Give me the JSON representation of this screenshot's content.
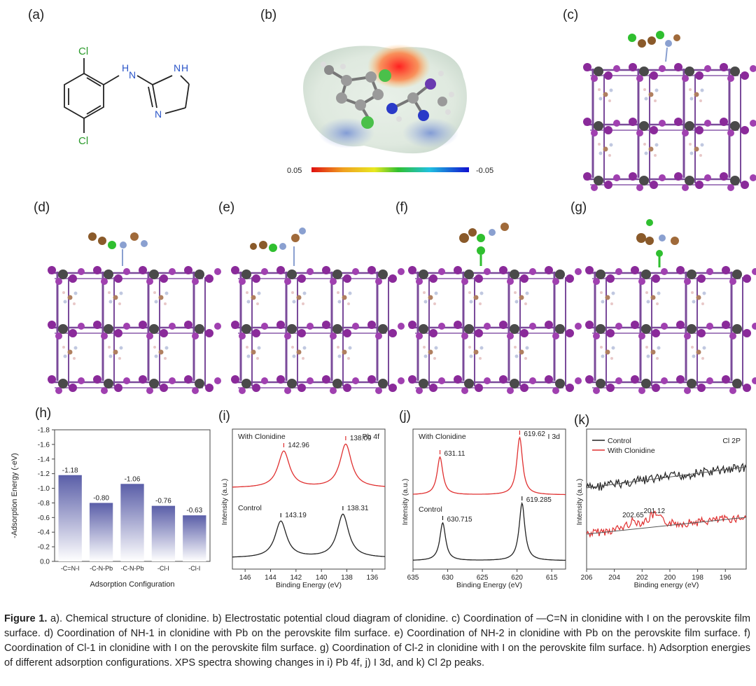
{
  "panel_labels": [
    "(a)",
    "(b)",
    "(c)",
    "(d)",
    "(e)",
    "(f)",
    "(g)",
    "(h)",
    "(i)",
    "(j)",
    "(k)"
  ],
  "structure": {
    "atoms": {
      "cl_top": "Cl",
      "cl_bottom": "Cl",
      "nh_link": "H",
      "nh_link_n": "N",
      "nh_ring_h": "H",
      "nh_ring_n": "N",
      "n_ring": "N"
    }
  },
  "esp": {
    "scale_max": "0.05",
    "scale_min": "-0.05"
  },
  "chart_h": {
    "type": "bar",
    "ylabel": "-Adsorption Energy (-eV)",
    "xlabel": "Adsorption Configuration",
    "ylim": [
      0.0,
      -1.8
    ],
    "yticks": [
      "-1.8",
      "-1.6",
      "-1.4",
      "-1.2",
      "-1.0",
      "-0.8",
      "-0.6",
      "-0.4",
      "-0.2",
      "0.0"
    ],
    "categories": [
      "-C=N-I",
      "-C-N-Pb",
      "-C-N-Pb",
      "-Cl-I",
      "-Cl-I"
    ],
    "values": [
      -1.18,
      -0.8,
      -1.06,
      -0.76,
      -0.63
    ],
    "value_labels": [
      "-1.18",
      "-0.80",
      "-1.06",
      "-0.76",
      "-0.63"
    ],
    "bar_color": "#5a5ea8"
  },
  "chart_i": {
    "type": "line",
    "corner_left": "With Clonidine",
    "corner_right": "Pb 4f",
    "ylabel": "Intensity (a.u.)",
    "xlabel": "Binding Energy (eV)",
    "xticks": [
      "146",
      "144",
      "142",
      "140",
      "138",
      "136"
    ],
    "xlim": [
      147,
      135
    ],
    "series": [
      {
        "name": "With Clonidine",
        "color": "#e03030",
        "peaks": [
          142.96,
          138.09
        ],
        "labels": [
          "142.96",
          "138.09"
        ]
      },
      {
        "name": "Control",
        "color": "#222222",
        "peaks": [
          143.19,
          138.31
        ],
        "labels": [
          "143.19",
          "138.31"
        ]
      }
    ]
  },
  "chart_j": {
    "type": "line",
    "corner_left": "With Clonidine",
    "corner_right": "I 3d",
    "ylabel": "Intensity (a.u.)",
    "xlabel": "Binding Energy (eV)",
    "xticks": [
      "635",
      "630",
      "625",
      "620",
      "615"
    ],
    "xlim": [
      635,
      613
    ],
    "series": [
      {
        "name": "With Clonidine",
        "color": "#e03030",
        "peaks": [
          631.11,
          619.62
        ],
        "labels": [
          "631.11",
          "619.62"
        ]
      },
      {
        "name": "Control",
        "color": "#222222",
        "peaks": [
          630.715,
          619.285
        ],
        "labels": [
          "630.715",
          "619.285"
        ]
      }
    ]
  },
  "chart_k": {
    "type": "line",
    "corner_right": "Cl 2P",
    "legend": [
      "Control",
      "With Clonidine"
    ],
    "ylabel": "Intensity (a.u.)",
    "xlabel": "Binding energy (eV)",
    "xticks": [
      "206",
      "204",
      "202",
      "200",
      "198",
      "196"
    ],
    "xlim": [
      206,
      194.5
    ],
    "peak_labels": [
      "202.65",
      "201.12"
    ],
    "colors": {
      "control": "#222222",
      "clonidine": "#e03030"
    }
  },
  "caption": {
    "label": "Figure 1.",
    "text": " a). Chemical structure of clonidine. b) Electrostatic potential cloud diagram of clonidine. c) Coordination of —C=N in clonidine with I on the perovskite film surface. d) Coordination of NH-1 in clonidine with Pb on the perovskite film surface. e) Coordination of NH-2 in clonidine with Pb on the perovskite film surface. f) Coordination of Cl-1 in clonidine with I on the perovskite film surface. g) Coordination of Cl-2 in clonidine with I on the perovskite film surface. h) Adsorption energies of different adsorption configurations. XPS spectra showing changes in i) Pb 4f, j) I 3d, and k) Cl 2p peaks."
  }
}
